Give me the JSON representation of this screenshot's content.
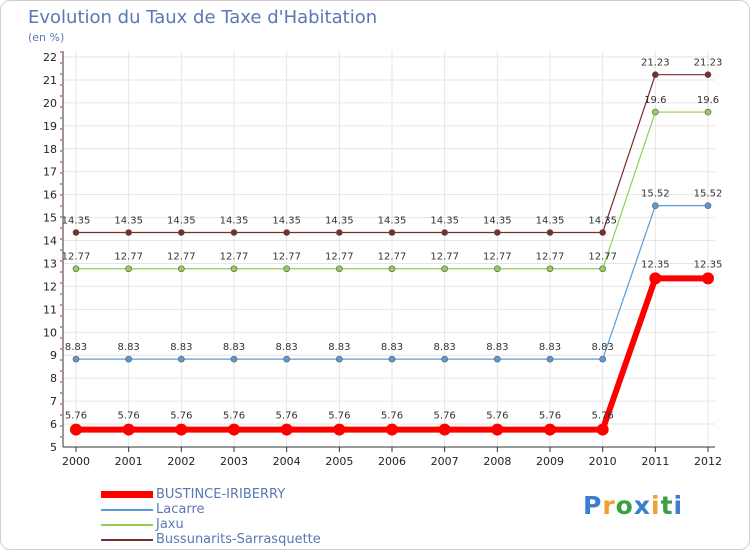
{
  "title": "Evolution du Taux de Taxe d'Habitation",
  "subtitle": "(en %)",
  "logo": {
    "text": "Proxiti",
    "letters": [
      {
        "ch": "P",
        "color": "#3a7fcf"
      },
      {
        "ch": "r",
        "color": "#f0a030"
      },
      {
        "ch": "o",
        "color": "#3aa043"
      },
      {
        "ch": "x",
        "color": "#3a7fcf"
      },
      {
        "ch": "i",
        "color": "#f0a030"
      },
      {
        "ch": "t",
        "color": "#3aa043"
      },
      {
        "ch": "i",
        "color": "#3a7fcf"
      }
    ]
  },
  "chart_data": {
    "type": "line",
    "title": "Evolution du Taux de Taxe d'Habitation",
    "ylabel": "(en %)",
    "xlabel": "",
    "ylim": [
      5,
      22
    ],
    "yticks": [
      5,
      6,
      7,
      8,
      9,
      10,
      11,
      12,
      13,
      14,
      15,
      16,
      17,
      18,
      19,
      20,
      21,
      22
    ],
    "categories": [
      "2000",
      "2001",
      "2002",
      "2003",
      "2004",
      "2005",
      "2006",
      "2007",
      "2008",
      "2009",
      "2010",
      "2011",
      "2012"
    ],
    "grid": true,
    "legend_position": "bottom-left",
    "series": [
      {
        "name": "BUSTINCE-IRIBERRY",
        "color": "#ff0000",
        "width": 6,
        "marker": 6,
        "values": [
          5.76,
          5.76,
          5.76,
          5.76,
          5.76,
          5.76,
          5.76,
          5.76,
          5.76,
          5.76,
          5.76,
          12.35,
          12.35
        ],
        "labels": [
          "5.76",
          "5.76",
          "5.76",
          "5.76",
          "5.76",
          "5.76",
          "5.76",
          "5.76",
          "5.76",
          "5.76",
          "5.76",
          "12.35",
          "12.35"
        ]
      },
      {
        "name": "Lacarre",
        "color": "#5b9bd5",
        "width": 1.2,
        "marker": 3,
        "values": [
          8.83,
          8.83,
          8.83,
          8.83,
          8.83,
          8.83,
          8.83,
          8.83,
          8.83,
          8.83,
          8.83,
          15.52,
          15.52
        ],
        "labels": [
          "8.83",
          "8.83",
          "8.83",
          "8.83",
          "8.83",
          "8.83",
          "8.83",
          "8.83",
          "8.83",
          "8.83",
          "8.83",
          "15.52",
          "15.52"
        ]
      },
      {
        "name": "Jaxu",
        "color": "#92d050",
        "width": 1.2,
        "marker": 3,
        "values": [
          12.77,
          12.77,
          12.77,
          12.77,
          12.77,
          12.77,
          12.77,
          12.77,
          12.77,
          12.77,
          12.77,
          19.6,
          19.6
        ],
        "labels": [
          "12.77",
          "12.77",
          "12.77",
          "12.77",
          "12.77",
          "12.77",
          "12.77",
          "12.77",
          "12.77",
          "12.77",
          "12.77",
          "19.6",
          "19.6"
        ]
      },
      {
        "name": "Bussunarits-Sarrasquette",
        "color": "#7b2c2c",
        "width": 1.2,
        "marker": 3,
        "values": [
          14.35,
          14.35,
          14.35,
          14.35,
          14.35,
          14.35,
          14.35,
          14.35,
          14.35,
          14.35,
          14.35,
          21.23,
          21.23
        ],
        "labels": [
          "14.35",
          "14.35",
          "14.35",
          "14.35",
          "14.35",
          "14.35",
          "14.35",
          "14.35",
          "14.35",
          "14.35",
          "14.35",
          "21.23",
          "21.23"
        ]
      }
    ]
  }
}
